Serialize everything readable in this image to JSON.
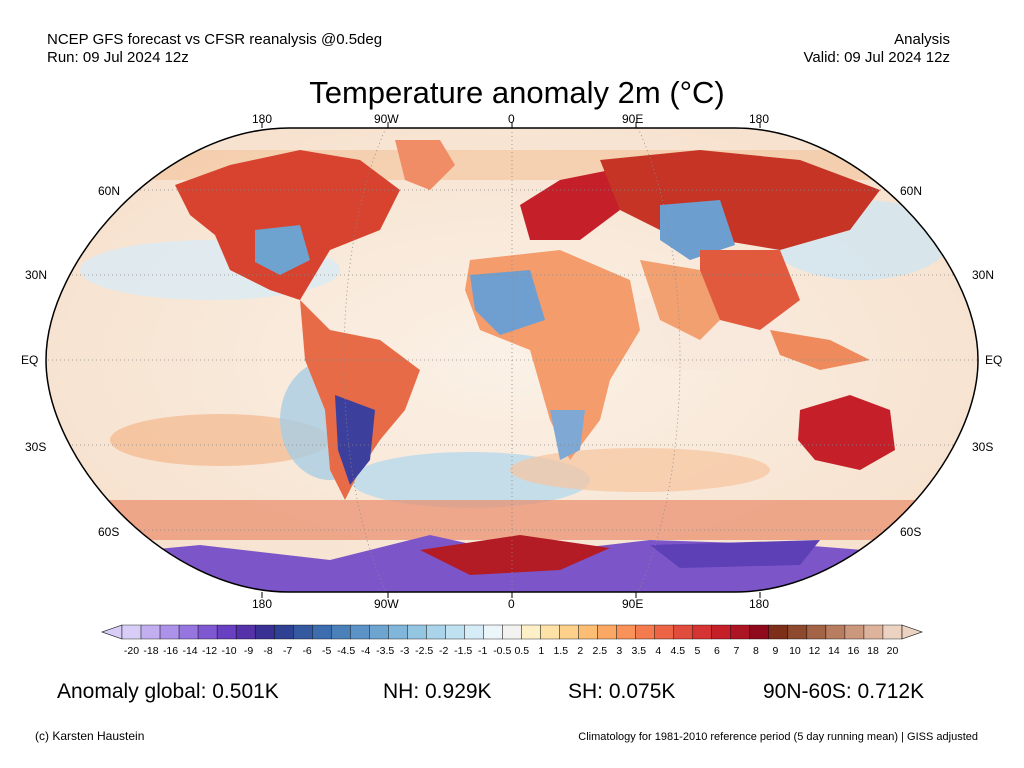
{
  "header": {
    "line1_left": "NCEP GFS forecast vs CFSR reanalysis @0.5deg",
    "line2_left": "Run: 09 Jul 2024 12z",
    "line1_right": "Analysis",
    "line2_right": "Valid: 09 Jul 2024 12z"
  },
  "title": "Temperature anomaly 2m (°C)",
  "map": {
    "lon_labels_top": [
      "180",
      "90W",
      "0",
      "90E",
      "180"
    ],
    "lon_labels_bottom": [
      "180",
      "90W",
      "0",
      "90E",
      "180"
    ],
    "lat_labels_left": [
      "60N",
      "30N",
      "EQ",
      "30S",
      "60S"
    ],
    "lat_labels_right": [
      "60N",
      "30N",
      "EQ",
      "30S",
      "60S"
    ],
    "regions": [
      {
        "name": "north-america-west-warm",
        "anomaly": 4
      },
      {
        "name": "north-america-east-warm",
        "anomaly": 5
      },
      {
        "name": "central-us-cool",
        "anomaly": -3
      },
      {
        "name": "europe-warm",
        "anomaly": 6
      },
      {
        "name": "russia-warm",
        "anomaly": 7
      },
      {
        "name": "siberia-cool",
        "anomaly": -3
      },
      {
        "name": "east-asia-warm",
        "anomaly": 4
      },
      {
        "name": "north-africa-cool",
        "anomaly": -3
      },
      {
        "name": "south-america-cool",
        "anomaly": -6
      },
      {
        "name": "southern-africa-cool",
        "anomaly": -3
      },
      {
        "name": "australia-warm",
        "anomaly": 6
      },
      {
        "name": "antarctica-cold",
        "anomaly": -14
      },
      {
        "name": "antarctica-warm",
        "anomaly": 9
      }
    ]
  },
  "colorbar": {
    "labels": [
      "-20",
      "-18",
      "-16",
      "-14",
      "-12",
      "-10",
      "-9",
      "-8",
      "-7",
      "-6",
      "-5",
      "-4.5",
      "-4",
      "-3.5",
      "-3",
      "-2.5",
      "-2",
      "-1.5",
      "-1",
      "-0.5",
      "0.5",
      "1",
      "1.5",
      "2",
      "2.5",
      "3",
      "3.5",
      "4",
      "4.5",
      "5",
      "6",
      "7",
      "8",
      "9",
      "10",
      "12",
      "14",
      "16",
      "18",
      "20"
    ],
    "colors": [
      "#d8cdf6",
      "#c2afef",
      "#ac92e8",
      "#9675de",
      "#7f58d2",
      "#6a40c2",
      "#5632aa",
      "#3a2f93",
      "#2f4192",
      "#3559a1",
      "#3d6daf",
      "#4b81bb",
      "#5b93c6",
      "#6da5d0",
      "#80b6d9",
      "#94c6e1",
      "#a9d4e9",
      "#bfe1f0",
      "#d6ecf6",
      "#ecf5f9",
      "#f4f2f0",
      "#fdf0c6",
      "#fde1a6",
      "#fdd08b",
      "#fcbd75",
      "#fba864",
      "#f99258",
      "#f47b4e",
      "#ec6445",
      "#e14c3c",
      "#d53432",
      "#c5202a",
      "#ad1524",
      "#8e0a1c",
      "#7d2f1a",
      "#8e4a2f",
      "#a36346",
      "#b87c60",
      "#cb977d",
      "#ddb39c",
      "#ecd2c0"
    ],
    "global_range_min": -20,
    "global_range_max": 20
  },
  "stats": {
    "global": "Anomaly global: 0.501K",
    "nh": "NH: 0.929K",
    "sh": "SH: 0.075K",
    "arctic_band": "90N-60S: 0.712K"
  },
  "footer": {
    "credit": "(c) Karsten Haustein",
    "note": "Climatology for 1981-2010 reference period (5 day running mean) | GISS adjusted"
  }
}
